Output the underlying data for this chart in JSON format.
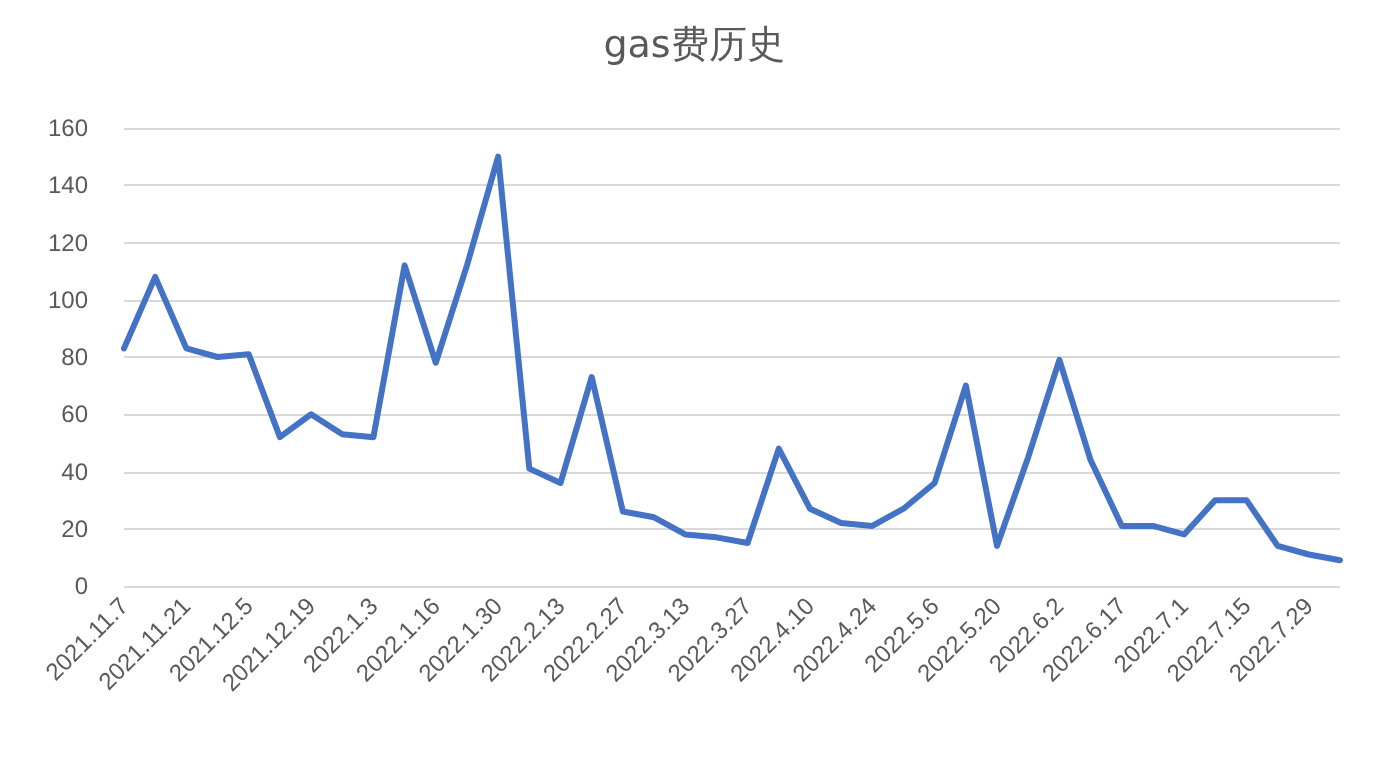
{
  "chart_data": {
    "type": "line",
    "title": "gas费历史",
    "categories": [
      "2021.11.7",
      null,
      "2021.11.21",
      null,
      "2021.12.5",
      null,
      "2021.12.19",
      null,
      "2022.1.3",
      null,
      "2022.1.16",
      null,
      "2022.1.30",
      null,
      "2022.2.13",
      null,
      "2022.2.27",
      null,
      "2022.3.13",
      null,
      "2022.3.27",
      null,
      "2022.4.10",
      null,
      "2022.4.24",
      null,
      "2022.5.6",
      null,
      "2022.5.20",
      null,
      "2022.6.2",
      null,
      "2022.6.17",
      null,
      "2022.7.1",
      null,
      "2022.7.15",
      null,
      "2022.7.29",
      null
    ],
    "series": [
      {
        "color": "#4472c4",
        "values": [
          83,
          108,
          83,
          80,
          81,
          52,
          60,
          53,
          52,
          112,
          78,
          112,
          150,
          41,
          36,
          73,
          26,
          24,
          18,
          17,
          15,
          48,
          27,
          22,
          21,
          27,
          36,
          70,
          14,
          45,
          79,
          44,
          21,
          21,
          18,
          30,
          30,
          14,
          11,
          9
        ]
      }
    ],
    "ylim": [
      0,
      160
    ],
    "yticks": [
      0,
      20,
      40,
      60,
      80,
      100,
      120,
      140,
      160
    ],
    "grid": "y",
    "marker": "none",
    "line_style": "solid"
  }
}
